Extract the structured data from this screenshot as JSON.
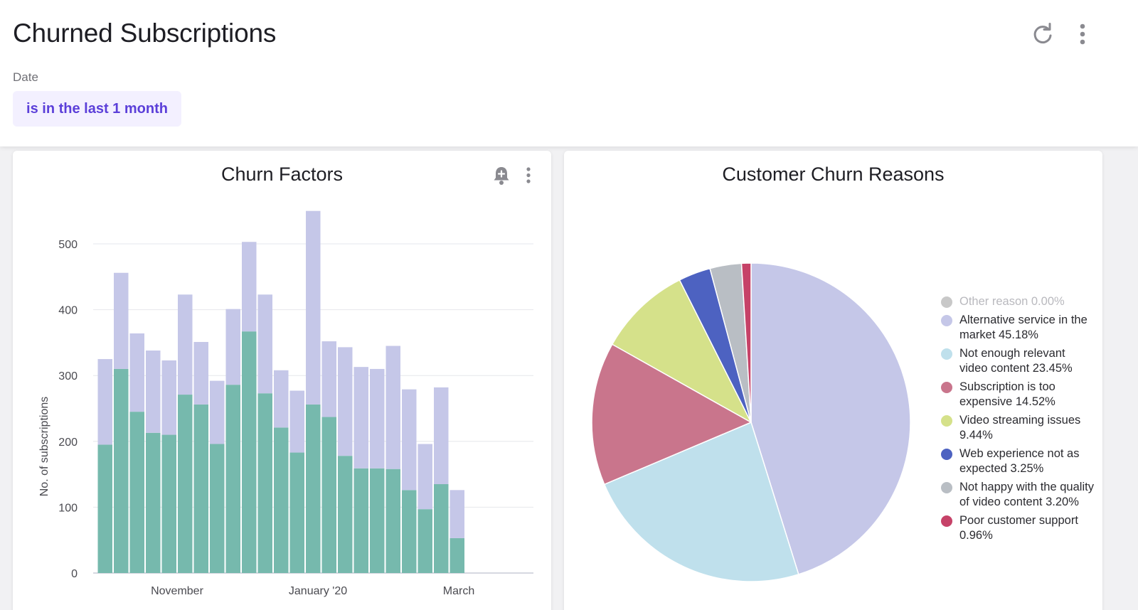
{
  "header": {
    "title": "Churned Subscriptions",
    "refresh_icon": "refresh-icon",
    "more_icon": "more-vertical-icon"
  },
  "filter": {
    "label": "Date",
    "value": "is in the last 1 month"
  },
  "colors": {
    "accent": "#5b3fd9",
    "chip_bg": "#f3f0ff",
    "bar_primary": "#76b9ad",
    "bar_secondary": "#c5c7e8"
  },
  "cards": {
    "left": {
      "title": "Churn Factors",
      "alert_icon": "bell-plus-icon",
      "more_icon": "more-vertical-icon"
    },
    "right": {
      "title": "Customer Churn Reasons"
    }
  },
  "chart_data": [
    {
      "type": "bar",
      "stacked": true,
      "ylabel": "No. of subscriptions",
      "xlabel": "",
      "ylim": [
        0,
        550
      ],
      "y_ticks": [
        0,
        100,
        200,
        300,
        400,
        500
      ],
      "x_tick_labels": [
        {
          "label": "November",
          "index": 4.5
        },
        {
          "label": "January '20",
          "index": 13.3
        },
        {
          "label": "March",
          "index": 22.1
        }
      ],
      "grid": true,
      "series": [
        {
          "color": "#76b9ad",
          "values": [
            195,
            310,
            245,
            213,
            210,
            271,
            256,
            196,
            286,
            367,
            273,
            221,
            183,
            256,
            237,
            178,
            159,
            159,
            158,
            126,
            97,
            135,
            53
          ]
        },
        {
          "color": "#c5c7e8",
          "values": [
            130,
            146,
            119,
            125,
            113,
            152,
            95,
            96,
            115,
            136,
            150,
            87,
            94,
            294,
            115,
            165,
            154,
            151,
            187,
            153,
            99,
            147,
            73
          ]
        }
      ]
    },
    {
      "type": "pie",
      "title": "Customer Churn Reasons",
      "legend_position": "right",
      "slices": [
        {
          "label": "Other reason 0.00%",
          "value": 0.0,
          "color": "#c8c8c8"
        },
        {
          "label": "Alternative service in the market 45.18%",
          "value": 45.18,
          "color": "#c5c7e8"
        },
        {
          "label": "Not enough relevant video content 23.45%",
          "value": 23.45,
          "color": "#bfe0ec"
        },
        {
          "label": "Subscription is too expensive 14.52%",
          "value": 14.52,
          "color": "#c9758c"
        },
        {
          "label": "Video streaming issues 9.44%",
          "value": 9.44,
          "color": "#d5e18a"
        },
        {
          "label": "Web experience not as expected 3.25%",
          "value": 3.25,
          "color": "#4d62c1"
        },
        {
          "label": "Not happy with the quality of video content 3.20%",
          "value": 3.2,
          "color": "#b9bec4"
        },
        {
          "label": "Poor customer support 0.96%",
          "value": 0.96,
          "color": "#c64268"
        }
      ]
    }
  ]
}
